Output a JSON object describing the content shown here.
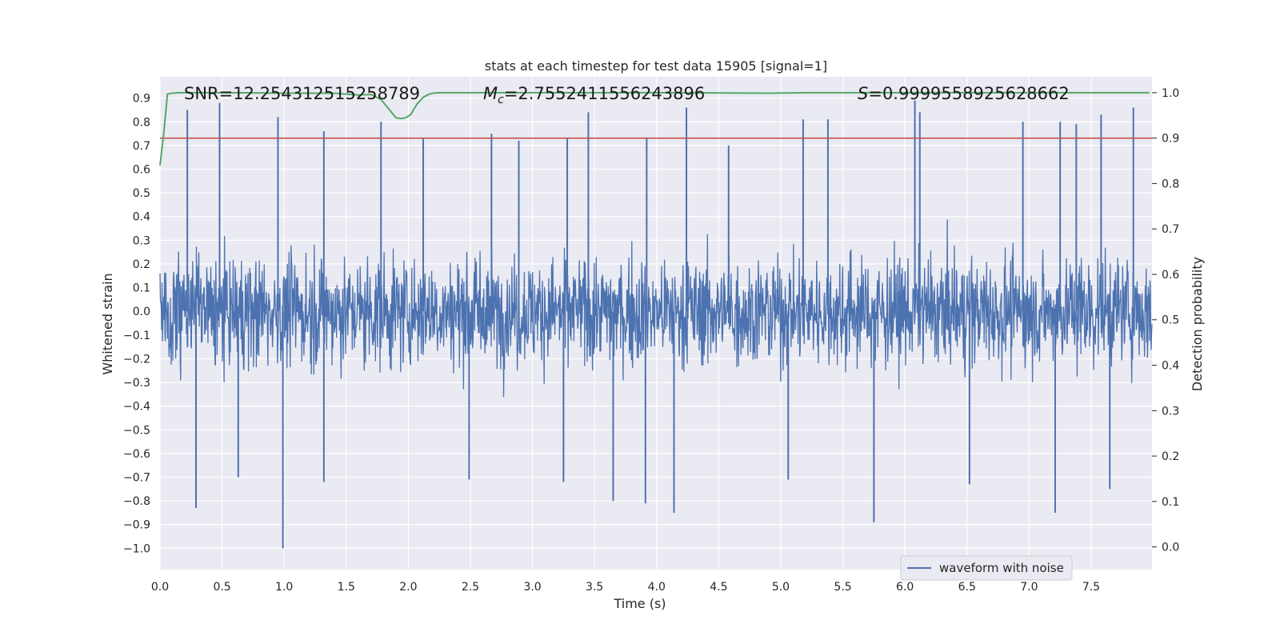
{
  "chart_data": {
    "type": "line",
    "title": "stats at each timestep for test data 15905 [signal=1]",
    "xlabel": "Time (s)",
    "ylabel_left": "Whitened strain",
    "ylabel_right": "Detection probability",
    "xlim": [
      0.0,
      7.99
    ],
    "ylim_left": [
      -1.09,
      0.99
    ],
    "ylim_right": [
      -0.05,
      1.035
    ],
    "grid": true,
    "x_ticks": [
      "0.0",
      "0.5",
      "1.0",
      "1.5",
      "2.0",
      "2.5",
      "3.0",
      "3.5",
      "4.0",
      "4.5",
      "5.0",
      "5.5",
      "6.0",
      "6.5",
      "7.0",
      "7.5"
    ],
    "y_ticks_left": [
      "0.9",
      "0.8",
      "0.7",
      "0.6",
      "0.5",
      "0.4",
      "0.3",
      "0.2",
      "0.1",
      "0.0",
      "−0.1",
      "−0.2",
      "−0.3",
      "−0.4",
      "−0.5",
      "−0.6",
      "−0.7",
      "−0.8",
      "−0.9",
      "−1.0"
    ],
    "y_ticks_right": [
      "1.0",
      "0.9",
      "0.8",
      "0.7",
      "0.6",
      "0.5",
      "0.4",
      "0.3",
      "0.2",
      "0.1",
      "0.0"
    ],
    "annotations": {
      "snr": "SNR=12.254312515258789",
      "mc_symbol": "M",
      "mc_sub": "c",
      "mc_value": "=2.7552411556243896",
      "s_symbol": "S",
      "s_value": "=0.9999558925628662"
    },
    "threshold": {
      "value": 0.9,
      "axis": "right",
      "color": "#c44e52"
    },
    "series": [
      {
        "name": "waveform with noise",
        "axis": "left",
        "color": "#4c72b0",
        "envelope_typical": 0.5,
        "spikes_positive": [
          [
            0.22,
            0.85
          ],
          [
            0.48,
            0.88
          ],
          [
            0.95,
            0.82
          ],
          [
            1.32,
            0.76
          ],
          [
            1.78,
            0.8
          ],
          [
            2.12,
            0.73
          ],
          [
            2.67,
            0.75
          ],
          [
            2.89,
            0.72
          ],
          [
            3.28,
            0.73
          ],
          [
            3.45,
            0.84
          ],
          [
            3.92,
            0.73
          ],
          [
            4.24,
            0.86
          ],
          [
            4.58,
            0.7
          ],
          [
            5.18,
            0.81
          ],
          [
            5.38,
            0.81
          ],
          [
            6.08,
            0.89
          ],
          [
            6.12,
            0.84
          ],
          [
            6.95,
            0.8
          ],
          [
            7.25,
            0.8
          ],
          [
            7.38,
            0.79
          ],
          [
            7.58,
            0.83
          ],
          [
            7.84,
            0.86
          ]
        ],
        "spikes_negative": [
          [
            0.29,
            -0.83
          ],
          [
            0.63,
            -0.7
          ],
          [
            0.99,
            -1.0
          ],
          [
            1.32,
            -0.72
          ],
          [
            2.49,
            -0.71
          ],
          [
            3.25,
            -0.72
          ],
          [
            3.65,
            -0.8
          ],
          [
            3.91,
            -0.81
          ],
          [
            4.14,
            -0.85
          ],
          [
            5.06,
            -0.71
          ],
          [
            5.75,
            -0.89
          ],
          [
            6.52,
            -0.73
          ],
          [
            7.21,
            -0.85
          ],
          [
            7.65,
            -0.75
          ]
        ]
      },
      {
        "name": "detection probability",
        "axis": "right",
        "color": "#55a868",
        "x": [
          0.0,
          0.03,
          0.06,
          0.1,
          0.15,
          0.3,
          0.6,
          1.0,
          1.4,
          1.5,
          1.6,
          1.7,
          1.78,
          1.84,
          1.9,
          1.94,
          1.98,
          2.02,
          2.07,
          2.12,
          2.17,
          2.2,
          2.25,
          2.35,
          3.0,
          4.0,
          4.9,
          5.2,
          6.0,
          7.0,
          7.97
        ],
        "y": [
          0.84,
          0.91,
          0.997,
          0.999,
          1.0,
          1.0,
          1.0,
          0.999,
          0.999,
          0.997,
          0.995,
          0.996,
          0.985,
          0.965,
          0.945,
          0.943,
          0.945,
          0.952,
          0.975,
          0.99,
          0.997,
          0.999,
          1.0,
          1.0,
          1.0,
          1.0,
          0.999,
          1.0,
          1.0,
          1.0,
          1.0
        ]
      }
    ],
    "legend": {
      "entries": [
        "waveform with noise"
      ],
      "location": "lower-right"
    }
  }
}
